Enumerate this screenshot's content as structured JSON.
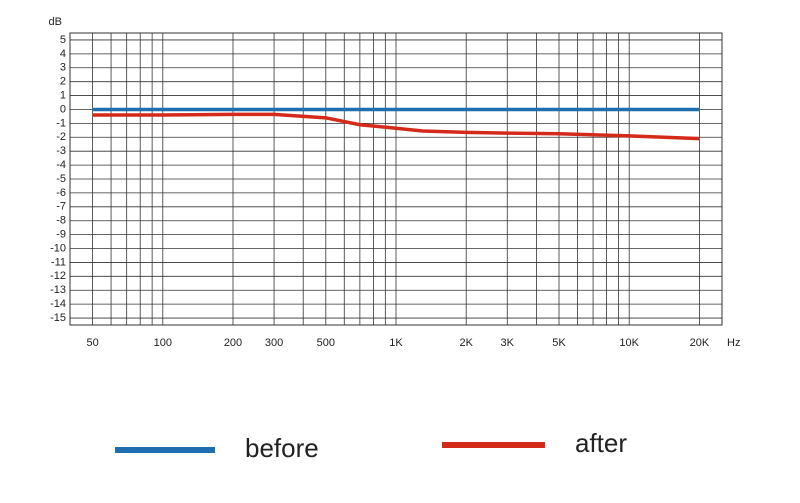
{
  "chart_data": {
    "type": "line",
    "y_label": "dB",
    "x_label": "Hz",
    "log_x": true,
    "xlim": [
      40,
      25000
    ],
    "ylim": [
      -15.5,
      5.5
    ],
    "xticks": [
      50,
      100,
      200,
      300,
      500,
      {
        "value": 1000,
        "label": "1K"
      },
      {
        "value": 2000,
        "label": "2K"
      },
      {
        "value": 3000,
        "label": "3K"
      },
      {
        "value": 5000,
        "label": "5K"
      },
      {
        "value": 10000,
        "label": "10K"
      },
      {
        "value": 20000,
        "label": "20K"
      }
    ],
    "xgrid": [
      40,
      60,
      70,
      80,
      90,
      400,
      600,
      700,
      800,
      900,
      4000,
      6000,
      7000,
      8000,
      9000
    ],
    "yticks": [
      5,
      4,
      3,
      2,
      1,
      0,
      -1,
      -2,
      -3,
      -4,
      -5,
      -6,
      -7,
      -8,
      -9,
      -10,
      -11,
      -12,
      -13,
      -14,
      -15
    ],
    "grid": true,
    "series": [
      {
        "name": "before",
        "color": "#1f6fb0",
        "x": [
          50,
          20000
        ],
        "values": [
          0,
          0
        ]
      },
      {
        "name": "after",
        "color": "#d42a1a",
        "x": [
          50,
          100,
          200,
          300,
          500,
          700,
          1000,
          1300,
          2000,
          3000,
          5000,
          10000,
          20000
        ],
        "values": [
          -0.4,
          -0.4,
          -0.35,
          -0.35,
          -0.6,
          -1.1,
          -1.35,
          -1.55,
          -1.65,
          -1.7,
          -1.75,
          -1.9,
          -2.1
        ]
      }
    ]
  }
}
